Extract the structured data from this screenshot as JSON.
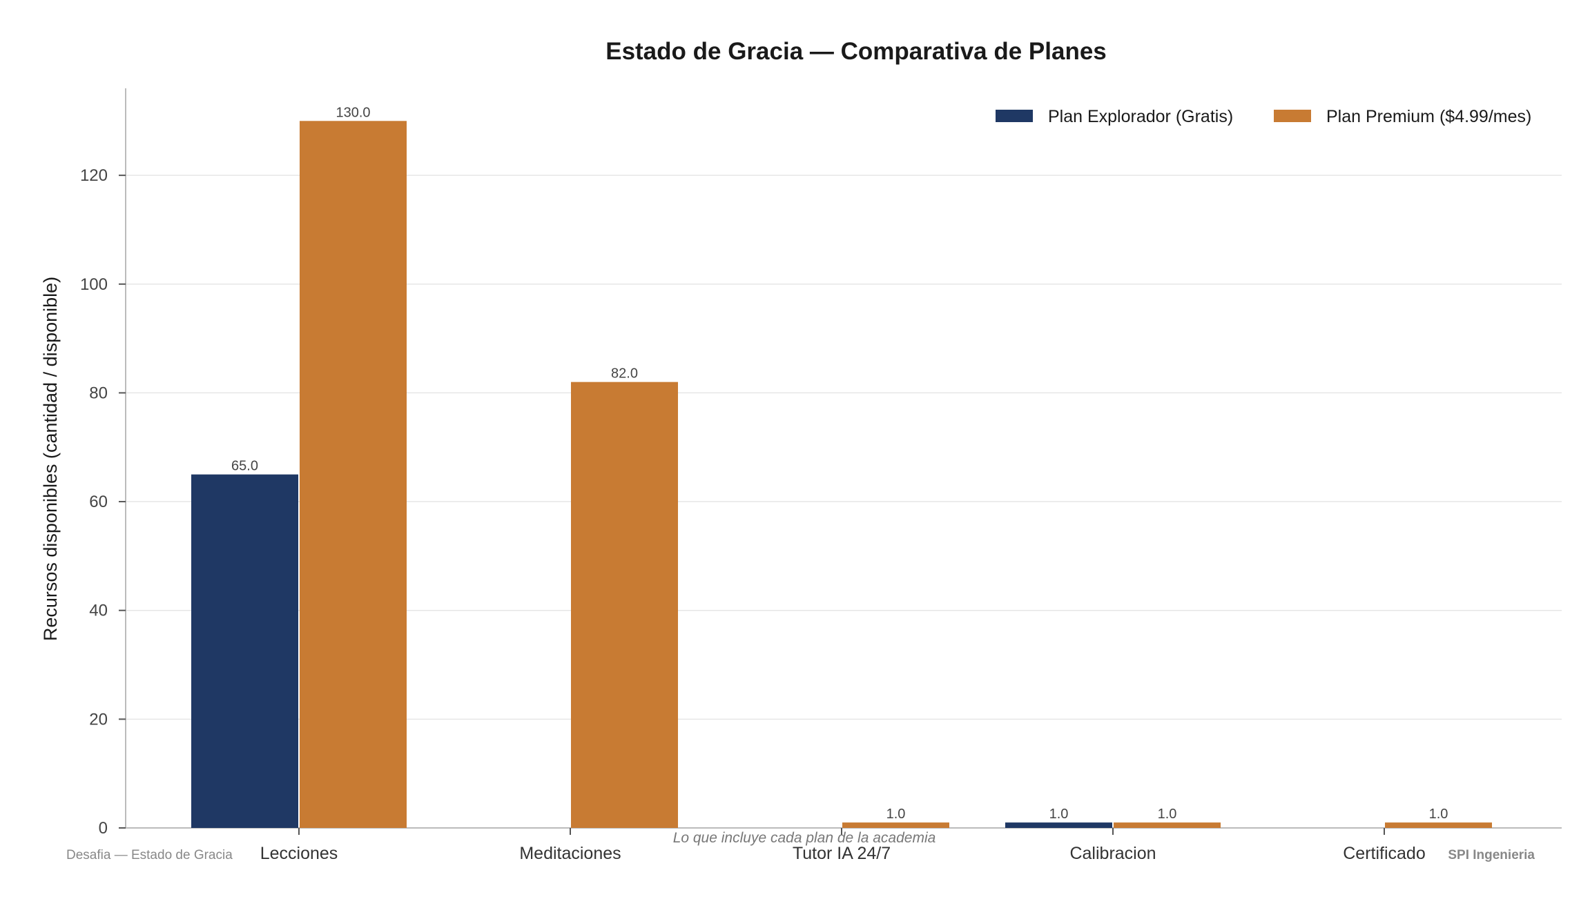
{
  "chart_data": {
    "type": "bar",
    "title": "Estado de Gracia — Comparativa de Planes",
    "subtitle": "",
    "xlabel": "",
    "ylabel": "Recursos disponibles (cantidad / disponible)",
    "caption": "Lo que incluye cada plan de la academia",
    "footer_left": "Desafia — Estado de Gracia",
    "footer_right": "SPI Ingenieria",
    "categories": [
      "Lecciones",
      "Meditaciones",
      "Tutor IA 24/7",
      "Calibracion",
      "Certificado"
    ],
    "series": [
      {
        "name": "Plan Explorador (Gratis)",
        "color": "#1f3864",
        "values": [
          65.0,
          0,
          0,
          1.0,
          0
        ]
      },
      {
        "name": "Plan Premium ($4.99/mes)",
        "color": "#c87b33",
        "values": [
          130.0,
          82.0,
          1.0,
          1.0,
          1.0
        ]
      }
    ],
    "data_labels": [
      [
        "65.0",
        "",
        "",
        "1.0",
        ""
      ],
      [
        "130.0",
        "82.0",
        "1.0",
        "1.0",
        "1.0"
      ]
    ],
    "ylim": [
      0,
      136
    ],
    "yticks": [
      0,
      20,
      40,
      60,
      80,
      100,
      120
    ],
    "grid": "horizontal",
    "legend_position": "top-right"
  }
}
